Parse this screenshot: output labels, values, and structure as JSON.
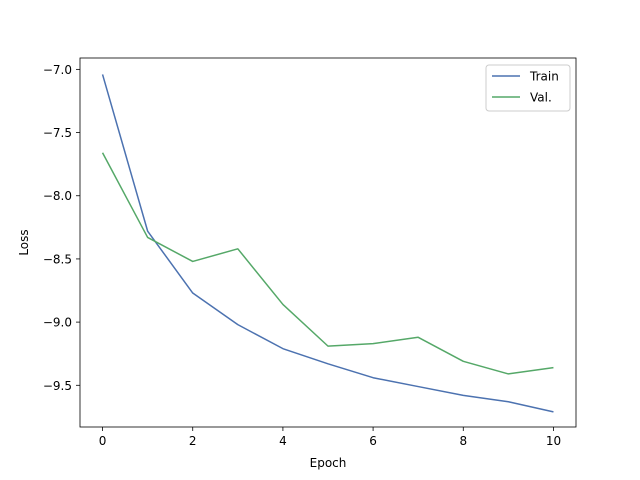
{
  "chart_data": {
    "type": "line",
    "title": "",
    "xlabel": "Epoch",
    "ylabel": "Loss",
    "x": [
      0,
      1,
      2,
      3,
      4,
      5,
      6,
      7,
      8,
      9,
      10
    ],
    "xlim": [
      -0.5,
      10.5
    ],
    "ylim": [
      -9.83,
      -6.91
    ],
    "xticks": [
      0,
      2,
      4,
      6,
      8,
      10
    ],
    "yticks": [
      -7.0,
      -7.5,
      -8.0,
      -8.5,
      -9.0,
      -9.5
    ],
    "xtick_labels": [
      "0",
      "2",
      "4",
      "6",
      "8",
      "10"
    ],
    "ytick_labels": [
      "−7.0",
      "−7.5",
      "−8.0",
      "−8.5",
      "−9.0",
      "−9.5"
    ],
    "grid": false,
    "legend_position": "top-right",
    "series": [
      {
        "name": "Train",
        "color": "#4c72b0",
        "values": [
          -7.04,
          -8.28,
          -8.77,
          -9.02,
          -9.21,
          -9.33,
          -9.44,
          -9.51,
          -9.58,
          -9.63,
          -9.71
        ]
      },
      {
        "name": "Val.",
        "color": "#55a868",
        "values": [
          -7.66,
          -8.33,
          -8.52,
          -8.42,
          -8.86,
          -9.19,
          -9.17,
          -9.12,
          -9.31,
          -9.41,
          -9.36
        ]
      }
    ]
  }
}
